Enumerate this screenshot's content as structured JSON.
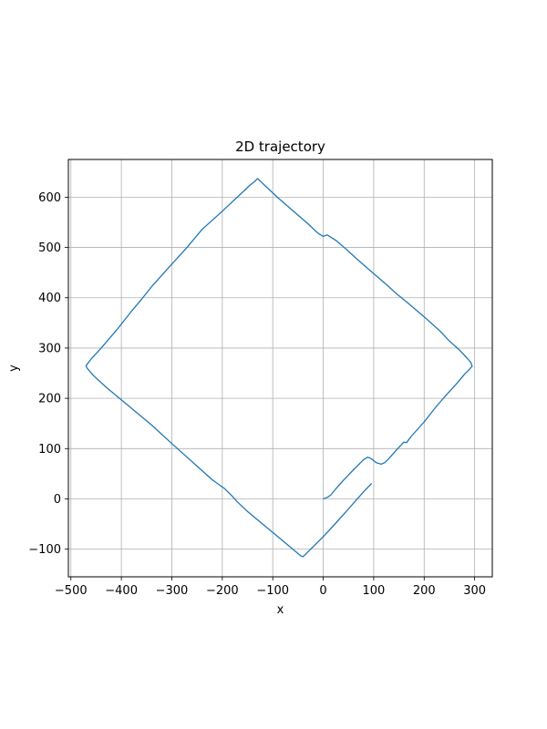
{
  "chart_data": {
    "type": "line",
    "title": "2D trajectory",
    "xlabel": "x",
    "ylabel": "y",
    "xlim": [
      -505,
      335
    ],
    "ylim": [
      -155,
      675
    ],
    "xticks": [
      -500,
      -400,
      -300,
      -200,
      -100,
      0,
      100,
      200,
      300
    ],
    "yticks": [
      -100,
      0,
      100,
      200,
      300,
      400,
      500,
      600
    ],
    "xtick_labels": [
      "−500",
      "−400",
      "−300",
      "−200",
      "−100",
      "0",
      "100",
      "200",
      "300"
    ],
    "ytick_labels": [
      "−100",
      "0",
      "100",
      "200",
      "300",
      "400",
      "500",
      "600"
    ],
    "grid": true,
    "line_color": "#1f77b4",
    "series": [
      {
        "x": [
          0,
          8,
          15,
          25,
          40,
          60,
          80,
          88,
          95,
          105,
          115,
          122,
          130,
          145,
          155,
          160,
          165,
          175,
          200,
          225,
          232,
          245,
          265,
          280,
          290,
          295,
          292,
          285,
          270,
          250,
          230,
          200,
          165,
          145,
          130,
          100,
          70,
          45,
          25,
          8,
          0,
          -10,
          -30,
          -60,
          -90,
          -110,
          -125,
          -130,
          -135,
          -145,
          -165,
          -200,
          -240,
          -270,
          -300,
          -340,
          -360,
          -380,
          -410,
          -440,
          -460,
          -470,
          -468,
          -455,
          -430,
          -400,
          -370,
          -340,
          -300,
          -250,
          -220,
          -195,
          -180,
          -170,
          -150,
          -120,
          -90,
          -60,
          -45,
          -40,
          -35,
          -20,
          0,
          25,
          50,
          65,
          80,
          96
        ],
        "y": [
          0,
          3,
          8,
          20,
          37,
          58,
          78,
          83,
          80,
          72,
          69,
          72,
          80,
          97,
          108,
          113,
          112,
          125,
          153,
          185,
          193,
          208,
          230,
          248,
          258,
          264,
          272,
          280,
          296,
          314,
          335,
          362,
          392,
          408,
          422,
          448,
          474,
          497,
          514,
          525,
          522,
          528,
          547,
          573,
          599,
          618,
          632,
          637,
          632,
          624,
          605,
          572,
          536,
          500,
          467,
          422,
          397,
          373,
          335,
          300,
          278,
          265,
          260,
          245,
          222,
          197,
          172,
          147,
          110,
          65,
          38,
          20,
          5,
          -6,
          -25,
          -50,
          -75,
          -100,
          -113,
          -115,
          -110,
          -95,
          -75,
          -48,
          -20,
          -3,
          14,
          31
        ]
      }
    ]
  }
}
